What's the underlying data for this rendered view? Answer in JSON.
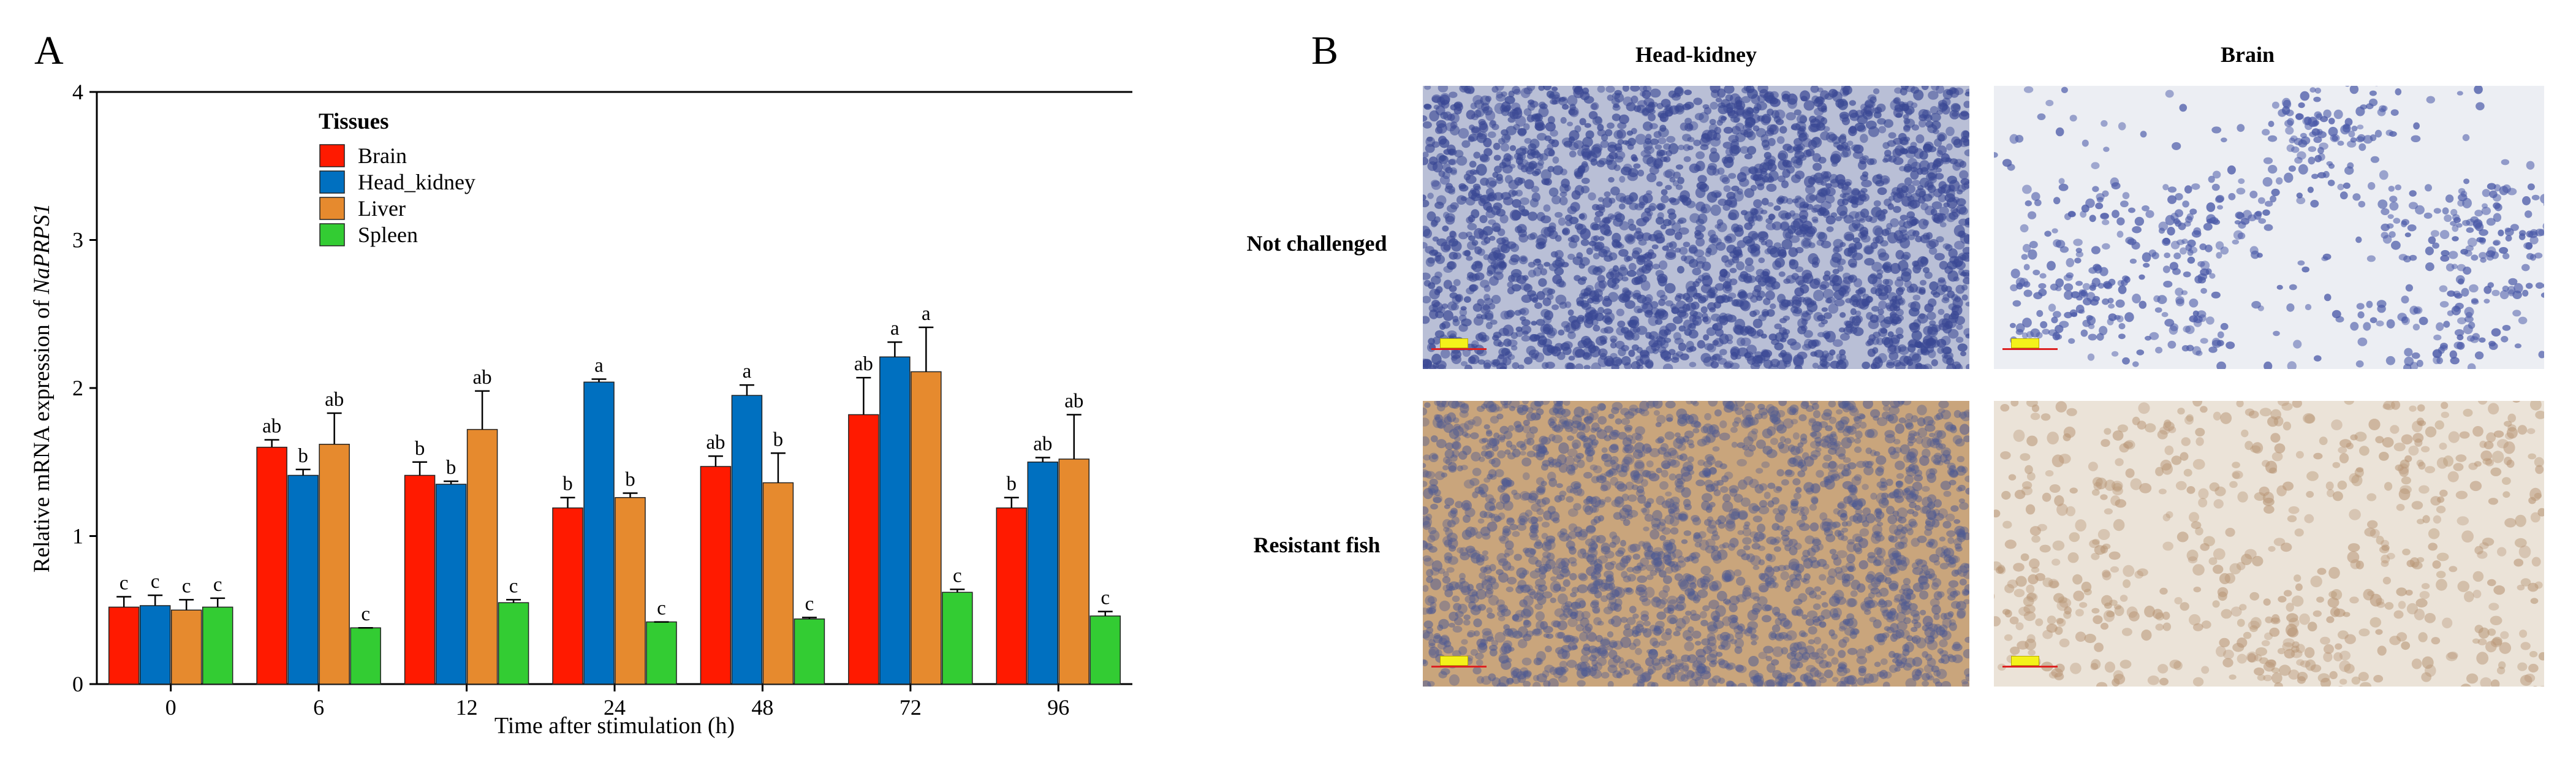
{
  "panel_a_label": "A",
  "panel_b_label": "B",
  "chart_data": {
    "type": "bar",
    "title": "",
    "xlabel": "Time after stimulation (h)",
    "ylabel_prefix": "Relative mRNA expression of ",
    "ylabel_gene": "NaPRPS1",
    "categories": [
      "0",
      "6",
      "12",
      "24",
      "48",
      "72",
      "96"
    ],
    "ylim": [
      0,
      4
    ],
    "yticks": [
      0,
      1,
      2,
      3,
      4
    ],
    "legend_title": "Tissues",
    "legend_position": "top-left",
    "series": [
      {
        "name": "Brain",
        "color": "#ff1a00",
        "values": [
          0.52,
          1.6,
          1.41,
          1.19,
          1.47,
          1.82,
          1.19
        ],
        "errors": [
          0.07,
          0.05,
          0.09,
          0.07,
          0.07,
          0.25,
          0.07
        ],
        "labels": [
          "c",
          "ab",
          "b",
          "b",
          "ab",
          "ab",
          "b"
        ]
      },
      {
        "name": "Head_kidney",
        "color": "#0070c0",
        "values": [
          0.53,
          1.41,
          1.35,
          2.04,
          1.95,
          2.21,
          1.5
        ],
        "errors": [
          0.07,
          0.04,
          0.02,
          0.02,
          0.07,
          0.1,
          0.03
        ],
        "labels": [
          "c",
          "b",
          "b",
          "a",
          "a",
          "a",
          "ab"
        ]
      },
      {
        "name": "Liver",
        "color": "#e68a2e",
        "values": [
          0.5,
          1.62,
          1.72,
          1.26,
          1.36,
          2.11,
          1.52
        ],
        "errors": [
          0.07,
          0.21,
          0.26,
          0.03,
          0.2,
          0.3,
          0.3
        ],
        "labels": [
          "c",
          "ab",
          "ab",
          "b",
          "b",
          "a",
          "ab"
        ]
      },
      {
        "name": "Spleen",
        "color": "#33cc33",
        "values": [
          0.52,
          0.38,
          0.55,
          0.42,
          0.44,
          0.62,
          0.46
        ],
        "errors": [
          0.06,
          0.0,
          0.02,
          0.0,
          0.01,
          0.02,
          0.03
        ],
        "labels": [
          "c",
          "c",
          "c",
          "c",
          "c",
          "c",
          "c"
        ]
      }
    ]
  },
  "panel_b": {
    "columns": [
      "Head-kidney",
      "Brain"
    ],
    "rows": [
      "Not challenged",
      "Resistant fish"
    ]
  },
  "colors": {
    "hk_normal_bg": "#b9bfd6",
    "hk_normal_cell": "#3a4894",
    "brain_normal_bg": "#eceef3",
    "brain_normal_cell": "#4b5aa8",
    "hk_resistant_bg": "#c9a57c",
    "hk_resistant_cell": "#4e5a93",
    "brain_resistant_bg": "#ebe3d8",
    "brain_resistant_cell": "#b89676"
  }
}
